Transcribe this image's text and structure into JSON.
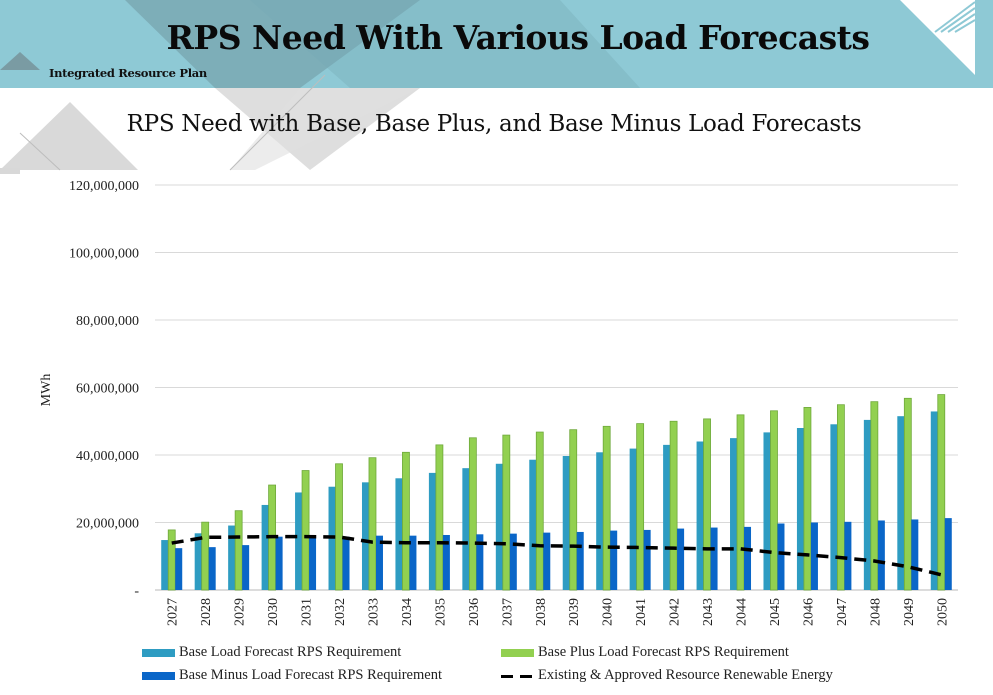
{
  "header": {
    "title": "RPS Need With Various Load Forecasts",
    "subtitle": "Integrated Resource Plan",
    "colors": {
      "band": "#8ec9d5",
      "shade": "#7aa9b3"
    }
  },
  "chart_data": {
    "type": "bar",
    "title": "RPS Need with Base, Base Plus, and Base Minus Load Forecasts",
    "xlabel": "",
    "ylabel": "MWh",
    "ylim": [
      0,
      120000000
    ],
    "yticks": [
      0,
      20000000,
      40000000,
      60000000,
      80000000,
      100000000,
      120000000
    ],
    "ytick_labels": [
      "-",
      "20,000,000",
      "40,000,000",
      "60,000,000",
      "80,000,000",
      "100,000,000",
      "120,000,000"
    ],
    "grid": true,
    "legend_position": "bottom",
    "categories": [
      "2027",
      "2028",
      "2029",
      "2030",
      "2031",
      "2032",
      "2033",
      "2034",
      "2035",
      "2036",
      "2037",
      "2038",
      "2039",
      "2040",
      "2041",
      "2042",
      "2043",
      "2044",
      "2045",
      "2046",
      "2047",
      "2048",
      "2049",
      "2050"
    ],
    "series": [
      {
        "name": "Base Load Forecast RPS Requirement",
        "kind": "bar",
        "color": "#2e9cc2",
        "values": [
          14800000,
          16800000,
          19100000,
          25200000,
          28900000,
          30600000,
          31900000,
          33100000,
          34700000,
          36100000,
          37400000,
          38600000,
          39700000,
          40800000,
          41900000,
          43000000,
          44000000,
          45000000,
          46700000,
          48000000,
          49100000,
          50400000,
          51500000,
          52900000
        ]
      },
      {
        "name": "Base Plus Load Forecast RPS Requirement",
        "kind": "bar",
        "color": "#92d050",
        "values": [
          17800000,
          20100000,
          23500000,
          31100000,
          35400000,
          37400000,
          39200000,
          40800000,
          43000000,
          45100000,
          45900000,
          46800000,
          47500000,
          48500000,
          49300000,
          50000000,
          50700000,
          51900000,
          53100000,
          54100000,
          54900000,
          55800000,
          56800000,
          57900000
        ]
      },
      {
        "name": "Base Minus Load Forecast RPS Requirement",
        "kind": "bar",
        "color": "#0a66c8",
        "values": [
          12400000,
          12700000,
          13300000,
          15800000,
          15800000,
          15800000,
          16100000,
          16100000,
          16300000,
          16500000,
          16700000,
          17000000,
          17200000,
          17600000,
          17800000,
          18200000,
          18500000,
          18700000,
          19700000,
          20000000,
          20200000,
          20600000,
          20900000,
          21300000
        ]
      },
      {
        "name": "Existing & Approved Resource Renewable Energy",
        "kind": "line",
        "style": "dashed",
        "color": "#000000",
        "values": [
          13900000,
          15600000,
          15700000,
          15800000,
          15800000,
          15700000,
          14200000,
          14000000,
          14000000,
          13900000,
          13700000,
          13100000,
          13000000,
          12700000,
          12600000,
          12400000,
          12200000,
          12200000,
          11100000,
          10400000,
          9600000,
          8600000,
          6900000,
          4500000
        ]
      }
    ]
  }
}
